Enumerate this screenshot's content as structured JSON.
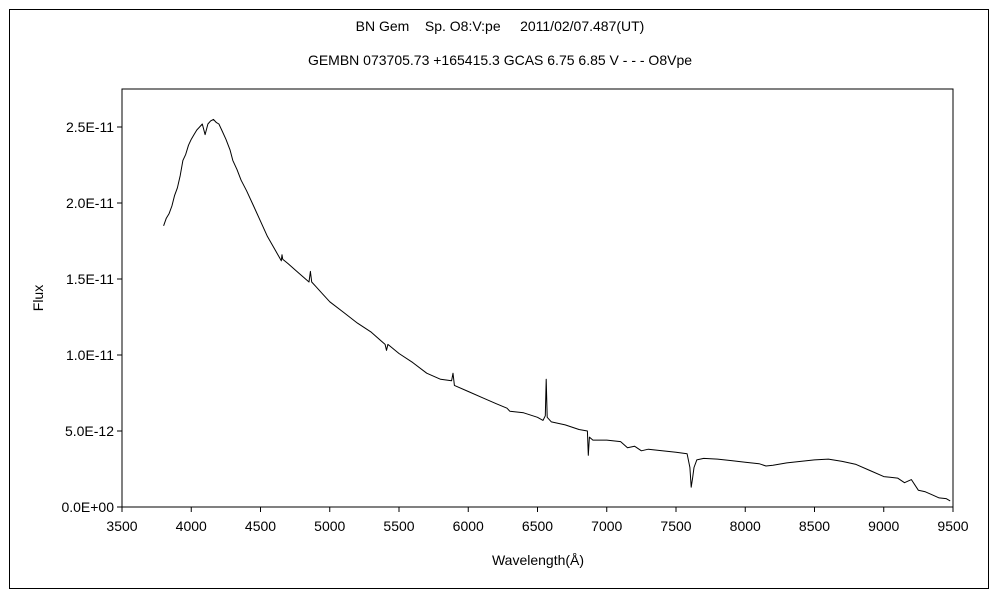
{
  "chart_data": {
    "type": "line",
    "title": "BN Gem    Sp. O8:V:pe     2011/02/07.487(UT)",
    "subtitle": "GEMBN 073705.73 +165415.3 GCAS 6.75 6.85 V - - - O8Vpe",
    "xlabel": "Wavelength(Å)",
    "ylabel": "Flux",
    "xlim": [
      3500,
      9500
    ],
    "ylim": [
      0,
      2.75e-11
    ],
    "x_ticks": [
      3500,
      4000,
      4500,
      5000,
      5500,
      6000,
      6500,
      7000,
      7500,
      8000,
      8500,
      9000,
      9500
    ],
    "x_tick_labels": [
      "3500",
      "4000",
      "4500",
      "5000",
      "5500",
      "6000",
      "6500",
      "7000",
      "7500",
      "8000",
      "8500",
      "9000",
      "9500"
    ],
    "y_ticks": [
      0,
      5e-12,
      1e-11,
      1.5e-11,
      2e-11,
      2.5e-11
    ],
    "y_tick_labels": [
      "0.0E+00",
      "5.0E-12",
      "1.0E-11",
      "1.5E-11",
      "2.0E-11",
      "2.5E-11"
    ],
    "grid": false,
    "legend": "none",
    "line_color": "#000000",
    "series": [
      {
        "x": [
          3800,
          3820,
          3840,
          3860,
          3880,
          3900,
          3920,
          3940,
          3960,
          3980,
          4000,
          4020,
          4040,
          4060,
          4080,
          4100,
          4120,
          4140,
          4160,
          4180,
          4200,
          4220,
          4250,
          4280,
          4300,
          4330,
          4360,
          4400,
          4450,
          4500,
          4550,
          4600,
          4650,
          4655,
          4660,
          4700,
          4750,
          4800,
          4850,
          4860,
          4870,
          4900,
          4950,
          5000,
          5100,
          5200,
          5300,
          5400,
          5410,
          5420,
          5500,
          5600,
          5700,
          5800,
          5880,
          5890,
          5900,
          6000,
          6100,
          6200,
          6280,
          6300,
          6400,
          6500,
          6540,
          6556,
          6563,
          6570,
          6600,
          6700,
          6800,
          6860,
          6867,
          6875,
          6900,
          7000,
          7100,
          7150,
          7200,
          7250,
          7300,
          7400,
          7500,
          7580,
          7600,
          7610,
          7620,
          7630,
          7650,
          7700,
          7800,
          7900,
          8000,
          8100,
          8150,
          8200,
          8300,
          8400,
          8500,
          8600,
          8700,
          8800,
          8900,
          9000,
          9100,
          9150,
          9200,
          9250,
          9300,
          9350,
          9400,
          9450,
          9480
        ],
        "y": [
          1.85e-11,
          1.9e-11,
          1.93e-11,
          1.98e-11,
          2.05e-11,
          2.1e-11,
          2.18e-11,
          2.28e-11,
          2.32e-11,
          2.38e-11,
          2.42e-11,
          2.45e-11,
          2.48e-11,
          2.5e-11,
          2.52e-11,
          2.45e-11,
          2.52e-11,
          2.54e-11,
          2.55e-11,
          2.53e-11,
          2.52e-11,
          2.48e-11,
          2.42e-11,
          2.35e-11,
          2.28e-11,
          2.22e-11,
          2.15e-11,
          2.08e-11,
          1.98e-11,
          1.88e-11,
          1.78e-11,
          1.7e-11,
          1.62e-11,
          1.66e-11,
          1.63e-11,
          1.6e-11,
          1.56e-11,
          1.52e-11,
          1.48e-11,
          1.55e-11,
          1.48e-11,
          1.45e-11,
          1.4e-11,
          1.35e-11,
          1.28e-11,
          1.21e-11,
          1.15e-11,
          1.07e-11,
          1.03e-11,
          1.07e-11,
          1.01e-11,
          9.5e-12,
          8.8e-12,
          8.4e-12,
          8.3e-12,
          8.8e-12,
          8e-12,
          7.6e-12,
          7.2e-12,
          6.8e-12,
          6.5e-12,
          6.3e-12,
          6.2e-12,
          5.9e-12,
          5.7e-12,
          6e-12,
          8.4e-12,
          5.9e-12,
          5.6e-12,
          5.4e-12,
          5.1e-12,
          5e-12,
          3.4e-12,
          4.6e-12,
          4.4e-12,
          4.4e-12,
          4.3e-12,
          3.9e-12,
          4e-12,
          3.7e-12,
          3.8e-12,
          3.7e-12,
          3.6e-12,
          3.5e-12,
          2.6e-12,
          1.3e-12,
          1.9e-12,
          2.6e-12,
          3.1e-12,
          3.2e-12,
          3.15e-12,
          3.05e-12,
          2.95e-12,
          2.85e-12,
          2.7e-12,
          2.75e-12,
          2.9e-12,
          3e-12,
          3.1e-12,
          3.15e-12,
          3e-12,
          2.8e-12,
          2.4e-12,
          2e-12,
          1.9e-12,
          1.6e-12,
          1.8e-12,
          1.1e-12,
          1e-12,
          8e-13,
          6e-13,
          5.5e-13,
          4e-13
        ]
      }
    ]
  }
}
